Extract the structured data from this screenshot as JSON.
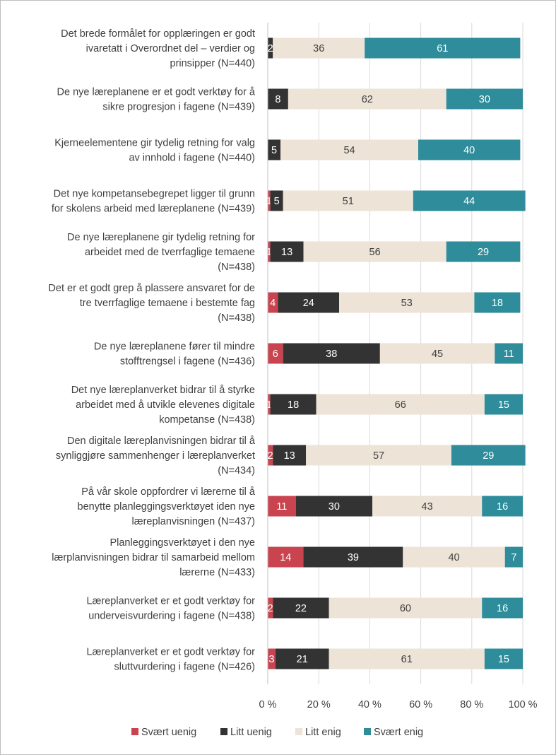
{
  "chart_data": {
    "type": "bar",
    "orientation": "horizontal",
    "stacked": "percent",
    "categories": [
      [
        "Det brede formålet for opplæringen er godt",
        "ivaretatt i Overordnet del – verdier og",
        "prinsipper (N=440)"
      ],
      [
        "De nye læreplanene er et godt verktøy for å",
        "sikre progresjon i fagene (N=439)"
      ],
      [
        "Kjerneelementene gir tydelig retning for valg",
        "av innhold i fagene (N=440)"
      ],
      [
        "Det nye kompetansebegrepet ligger til grunn",
        "for skolens arbeid med læreplanene (N=439)"
      ],
      [
        "De nye læreplanene gir tydelig retning for",
        "arbeidet med de tverrfaglige temaene",
        "(N=438)"
      ],
      [
        "Det er et godt grep å plassere ansvaret for de",
        "tre tverrfaglige temaene i bestemte fag",
        "(N=438)"
      ],
      [
        "De nye læreplanene fører til mindre",
        "stofftrengsel i fagene (N=436)"
      ],
      [
        "Det nye læreplanverket bidrar til å styrke",
        "arbeidet med å utvikle elevenes digitale",
        "kompetanse (N=438)"
      ],
      [
        "Den digitale læreplanvisningen bidrar til å",
        "synliggjøre sammenhenger i læreplanverket",
        "(N=434)"
      ],
      [
        "På vår skole oppfordrer vi lærerne til å",
        "benytte planleggingsverktøyet iden nye",
        "læreplanvisningen (N=437)"
      ],
      [
        "Planleggingsverktøyet i den nye",
        "lærplanvisningen bidrar til samarbeid mellom",
        "lærerne (N=433)"
      ],
      [
        "Læreplanverket er et godt verktøy for",
        "underveisvurdering i fagene (N=438)"
      ],
      [
        "Læreplanverket er et godt verktøy for",
        "sluttvurdering i fagene (N=426)"
      ]
    ],
    "series": [
      {
        "name": "Svært uenig",
        "color": "#c9444f",
        "label_color": "#ffffff",
        "values": [
          0,
          0,
          0,
          1,
          1,
          4,
          6,
          1,
          2,
          11,
          14,
          2,
          3
        ]
      },
      {
        "name": "Litt uenig",
        "color": "#333333",
        "label_color": "#ffffff",
        "values": [
          2,
          8,
          5,
          5,
          13,
          24,
          38,
          18,
          13,
          30,
          39,
          22,
          21
        ]
      },
      {
        "name": "Litt enig",
        "color": "#ede3d7",
        "label_color": "#404040",
        "values": [
          36,
          62,
          54,
          51,
          56,
          53,
          45,
          66,
          57,
          43,
          40,
          60,
          61
        ]
      },
      {
        "name": "Svært enig",
        "color": "#2e8c9b",
        "label_color": "#ffffff",
        "values": [
          61,
          30,
          40,
          44,
          29,
          18,
          11,
          15,
          29,
          16,
          7,
          16,
          15
        ]
      }
    ],
    "x_ticks": [
      "0 %",
      "20 %",
      "40 %",
      "60 %",
      "80 %",
      "100 %"
    ],
    "xlim": [
      0,
      100
    ],
    "grid": true,
    "legend_position": "bottom",
    "title": "",
    "xlabel": "",
    "ylabel": ""
  }
}
